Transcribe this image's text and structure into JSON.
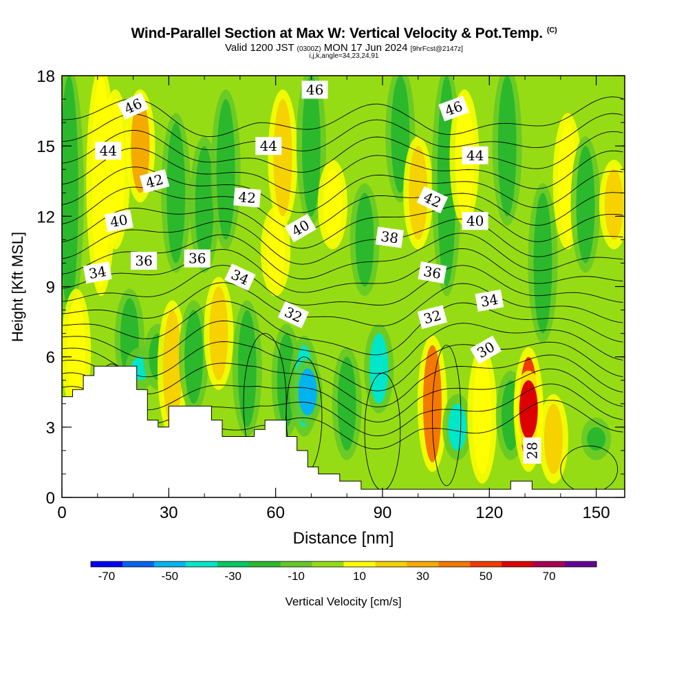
{
  "title": {
    "main": "Wind-Parallel Section at Max W: Vertical Velocity & Pot.Temp.",
    "copyright": "(C)",
    "sub_prefix": "Valid 1200 JST",
    "sub_utc": "(0300Z)",
    "sub_date": "MON 17 Jun 2024",
    "sub_fcst": "[9hrFcst@2147z]",
    "params": "i,j,k,angle=34,23,24,91"
  },
  "chart_data": {
    "type": "heatmap",
    "xlabel": "Distance [nm]",
    "ylabel": "Height [Kft MSL]",
    "xlim": [
      0,
      158
    ],
    "ylim": [
      0,
      18
    ],
    "x_ticks": [
      "0",
      "30",
      "60",
      "90",
      "120",
      "150"
    ],
    "y_ticks": [
      "0",
      "3",
      "6",
      "9",
      "12",
      "15",
      "18"
    ],
    "colorbar": {
      "label": "Vertical Velocity [cm/s]",
      "tick_labels": [
        "-70",
        "-50",
        "-30",
        "-10",
        "10",
        "30",
        "50",
        "70"
      ],
      "bounds": [
        -75,
        -65,
        -55,
        -45,
        -35,
        -25,
        -15,
        -5,
        5,
        15,
        25,
        35,
        45,
        55,
        65,
        75,
        85
      ],
      "colors": [
        "#0000f0",
        "#0064f0",
        "#00b4f0",
        "#00e6c8",
        "#00c864",
        "#2cb82c",
        "#64c828",
        "#96dc14",
        "#ffff00",
        "#f5d200",
        "#f5aa00",
        "#f57800",
        "#f03c00",
        "#dc0000",
        "#aa0050",
        "#640096"
      ]
    },
    "velocity_columns": [
      {
        "x": 2,
        "level": -20,
        "bottom": 8,
        "top": 18
      },
      {
        "x": 4,
        "level": 10,
        "bottom": 4,
        "top": 8.5
      },
      {
        "x": 11,
        "level": 10,
        "bottom": 9,
        "top": 18
      },
      {
        "x": 15,
        "level": 5,
        "bottom": 11,
        "top": 17
      },
      {
        "x": 19,
        "level": -20,
        "bottom": 5,
        "top": 8.5
      },
      {
        "x": 22,
        "level": -40,
        "bottom": 5,
        "top": 6
      },
      {
        "x": 22,
        "level": 30,
        "bottom": 13,
        "top": 17
      },
      {
        "x": 27,
        "level": -20,
        "bottom": 5,
        "top": 7
      },
      {
        "x": 31,
        "level": 20,
        "bottom": 3,
        "top": 8
      },
      {
        "x": 32,
        "level": -20,
        "bottom": 10,
        "top": 16
      },
      {
        "x": 37,
        "level": -20,
        "bottom": 4,
        "top": 8
      },
      {
        "x": 40,
        "level": -20,
        "bottom": 10,
        "top": 15
      },
      {
        "x": 44,
        "level": 20,
        "bottom": 5,
        "top": 9
      },
      {
        "x": 46,
        "level": -20,
        "bottom": 11,
        "top": 17
      },
      {
        "x": 52,
        "level": -20,
        "bottom": 3,
        "top": 8
      },
      {
        "x": 60,
        "level": 10,
        "bottom": 9,
        "top": 12
      },
      {
        "x": 62,
        "level": 20,
        "bottom": 12,
        "top": 17
      },
      {
        "x": 63,
        "level": -20,
        "bottom": 3,
        "top": 7
      },
      {
        "x": 68,
        "level": -40,
        "bottom": 3,
        "top": 6.5
      },
      {
        "x": 69,
        "level": -50,
        "bottom": 3.5,
        "top": 5.5
      },
      {
        "x": 70,
        "level": -20,
        "bottom": 12,
        "top": 18
      },
      {
        "x": 76,
        "level": 10,
        "bottom": 11,
        "top": 14
      },
      {
        "x": 80,
        "level": -20,
        "bottom": 2,
        "top": 6
      },
      {
        "x": 85,
        "level": -20,
        "bottom": 9,
        "top": 13
      },
      {
        "x": 89,
        "level": -40,
        "bottom": 4,
        "top": 7
      },
      {
        "x": 95,
        "level": -20,
        "bottom": 13,
        "top": 18
      },
      {
        "x": 100,
        "level": 20,
        "bottom": 11,
        "top": 15
      },
      {
        "x": 104,
        "level": 40,
        "bottom": 1.5,
        "top": 6.5
      },
      {
        "x": 108,
        "level": -20,
        "bottom": 9,
        "top": 18
      },
      {
        "x": 111,
        "level": -40,
        "bottom": 2,
        "top": 4
      },
      {
        "x": 113,
        "level": 10,
        "bottom": 12,
        "top": 17
      },
      {
        "x": 118,
        "level": 10,
        "bottom": 1,
        "top": 6
      },
      {
        "x": 125,
        "level": -20,
        "bottom": 12,
        "top": 18
      },
      {
        "x": 126,
        "level": -20,
        "bottom": 2,
        "top": 5
      },
      {
        "x": 131,
        "level": 50,
        "bottom": 1.5,
        "top": 6
      },
      {
        "x": 131,
        "level": 60,
        "bottom": 2.5,
        "top": 5
      },
      {
        "x": 135,
        "level": -20,
        "bottom": 7,
        "top": 13
      },
      {
        "x": 138,
        "level": 20,
        "bottom": 1,
        "top": 4
      },
      {
        "x": 142,
        "level": 10,
        "bottom": 11,
        "top": 16
      },
      {
        "x": 147,
        "level": -20,
        "bottom": 10,
        "top": 15
      },
      {
        "x": 150,
        "level": -20,
        "bottom": 2,
        "top": 3
      },
      {
        "x": 155,
        "level": 20,
        "bottom": 11,
        "top": 14
      }
    ],
    "contour_labels": [
      {
        "text": "46",
        "x": 20,
        "y": 16.7,
        "angle": -25
      },
      {
        "text": "46",
        "x": 71,
        "y": 17.4,
        "angle": 0
      },
      {
        "text": "46",
        "x": 110,
        "y": 16.6,
        "angle": -20
      },
      {
        "text": "44",
        "x": 13,
        "y": 14.8,
        "angle": 0
      },
      {
        "text": "44",
        "x": 58,
        "y": 15.0,
        "angle": 0
      },
      {
        "text": "44",
        "x": 116,
        "y": 14.6,
        "angle": 0
      },
      {
        "text": "42",
        "x": 26,
        "y": 13.5,
        "angle": -15
      },
      {
        "text": "42",
        "x": 52,
        "y": 12.8,
        "angle": 5
      },
      {
        "text": "42",
        "x": 104,
        "y": 12.7,
        "angle": 25
      },
      {
        "text": "40",
        "x": 16,
        "y": 11.8,
        "angle": -10
      },
      {
        "text": "40",
        "x": 67,
        "y": 11.5,
        "angle": -30
      },
      {
        "text": "40",
        "x": 116,
        "y": 11.8,
        "angle": 0
      },
      {
        "text": "38",
        "x": 92,
        "y": 11.1,
        "angle": 8
      },
      {
        "text": "36",
        "x": 23,
        "y": 10.1,
        "angle": 0
      },
      {
        "text": "36",
        "x": 38,
        "y": 10.2,
        "angle": 0
      },
      {
        "text": "36",
        "x": 104,
        "y": 9.6,
        "angle": 10
      },
      {
        "text": "34",
        "x": 10,
        "y": 9.6,
        "angle": -10
      },
      {
        "text": "34",
        "x": 50,
        "y": 9.4,
        "angle": 25
      },
      {
        "text": "34",
        "x": 120,
        "y": 8.4,
        "angle": -10
      },
      {
        "text": "32",
        "x": 65,
        "y": 7.8,
        "angle": 25
      },
      {
        "text": "32",
        "x": 104,
        "y": 7.7,
        "angle": -15
      },
      {
        "text": "30",
        "x": 119,
        "y": 6.3,
        "angle": -30
      },
      {
        "text": "28",
        "x": 132,
        "y": 2.0,
        "angle": -90
      }
    ],
    "theta_levels": [
      29,
      30,
      31,
      32,
      33,
      34,
      35,
      36,
      37,
      38,
      39,
      40,
      41,
      42,
      43,
      44,
      45,
      46,
      47
    ],
    "terrain": {
      "x": [
        0,
        3,
        3,
        6,
        6,
        9,
        9,
        15,
        15,
        21,
        21,
        24,
        24,
        27,
        27,
        30,
        30,
        33,
        33,
        42,
        42,
        45,
        45,
        54,
        54,
        57,
        57,
        63,
        63,
        66,
        66,
        69,
        69,
        72,
        72,
        78,
        78,
        84,
        84,
        90,
        90,
        102,
        102,
        126,
        126,
        132,
        132,
        158
      ],
      "y": [
        4.3,
        4.3,
        4.6,
        4.6,
        5.2,
        5.2,
        5.6,
        5.6,
        5.6,
        5.6,
        4.6,
        4.6,
        3.3,
        3.3,
        3.0,
        3.0,
        3.9,
        3.9,
        3.9,
        3.9,
        3.3,
        3.3,
        2.6,
        2.6,
        2.9,
        2.9,
        3.3,
        3.3,
        2.6,
        2.6,
        2.0,
        2.0,
        1.3,
        1.3,
        1.0,
        1.0,
        0.7,
        0.7,
        0.35,
        0.35,
        0.35,
        0.35,
        0.35,
        0.35,
        0.7,
        0.7,
        0.35,
        0.35
      ]
    }
  }
}
